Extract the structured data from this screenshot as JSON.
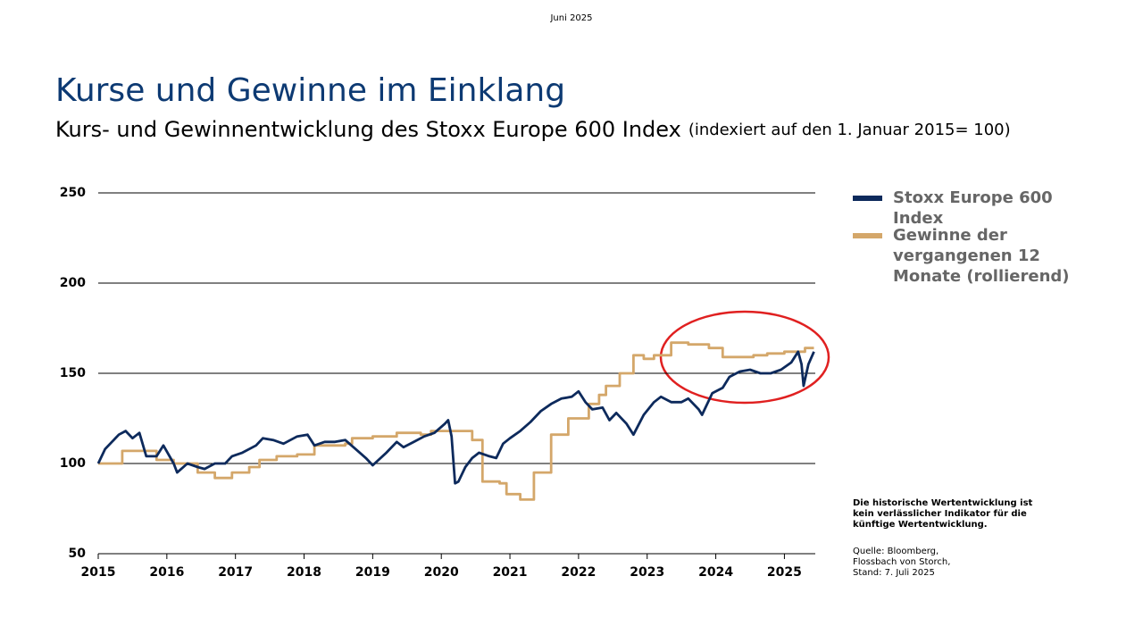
{
  "date": "Juni 2025",
  "chart_data": {
    "type": "line",
    "title": "Kurse und Gewinne im Einklang",
    "subtitle": "Kurs- und Gewinnentwicklung des Stoxx Europe 600 Index",
    "subtitle_note": "(indexiert auf den 1. Januar 2015= 100)",
    "xlim": [
      2015,
      2025.45
    ],
    "xticks": [
      2015,
      2016,
      2017,
      2018,
      2019,
      2020,
      2021,
      2022,
      2023,
      2024,
      2025
    ],
    "ylim": [
      50,
      250
    ],
    "yticks": [
      50,
      100,
      150,
      200,
      250
    ],
    "grid": true,
    "series": [
      {
        "name": "Stoxx Europe 600 Index",
        "color": "#0d2a5c",
        "x": [
          2015.0,
          2015.1,
          2015.3,
          2015.4,
          2015.5,
          2015.6,
          2015.7,
          2015.85,
          2015.95,
          2016.1,
          2016.15,
          2016.3,
          2016.45,
          2016.55,
          2016.7,
          2016.85,
          2016.95,
          2017.1,
          2017.3,
          2017.4,
          2017.55,
          2017.7,
          2017.9,
          2018.05,
          2018.15,
          2018.3,
          2018.45,
          2018.6,
          2018.75,
          2018.9,
          2019.0,
          2019.2,
          2019.35,
          2019.45,
          2019.6,
          2019.75,
          2019.9,
          2020.05,
          2020.1,
          2020.15,
          2020.2,
          2020.25,
          2020.35,
          2020.45,
          2020.55,
          2020.7,
          2020.8,
          2020.9,
          2021.0,
          2021.15,
          2021.3,
          2021.45,
          2021.6,
          2021.75,
          2021.9,
          2022.0,
          2022.1,
          2022.2,
          2022.35,
          2022.45,
          2022.55,
          2022.7,
          2022.8,
          2022.95,
          2023.1,
          2023.2,
          2023.35,
          2023.5,
          2023.6,
          2023.75,
          2023.8,
          2023.95,
          2024.1,
          2024.2,
          2024.35,
          2024.5,
          2024.65,
          2024.8,
          2024.95,
          2025.1,
          2025.2,
          2025.25,
          2025.28,
          2025.35,
          2025.43
        ],
        "values": [
          100,
          108,
          116,
          118,
          114,
          117,
          104,
          104,
          110,
          100,
          95,
          100,
          98,
          97,
          100,
          100,
          104,
          106,
          110,
          114,
          113,
          111,
          115,
          116,
          110,
          112,
          112,
          113,
          108,
          103,
          99,
          106,
          112,
          109,
          112,
          115,
          117,
          122,
          124,
          115,
          89,
          90,
          98,
          103,
          106,
          104,
          103,
          111,
          114,
          118,
          123,
          129,
          133,
          136,
          137,
          140,
          134,
          130,
          131,
          124,
          128,
          122,
          116,
          127,
          134,
          137,
          134,
          134,
          136,
          130,
          127,
          139,
          142,
          148,
          151,
          152,
          150,
          150,
          152,
          156,
          162,
          155,
          143,
          155,
          162
        ]
      },
      {
        "name": "Gewinne der vergangenen 12 Monate (rollierend)",
        "color": "#d4a76a",
        "x": [
          2015,
          2015.35,
          2015.35,
          2015.85,
          2015.85,
          2016.1,
          2016.1,
          2016.45,
          2016.45,
          2016.7,
          2016.7,
          2016.95,
          2016.95,
          2017.2,
          2017.2,
          2017.35,
          2017.35,
          2017.6,
          2017.6,
          2017.9,
          2017.9,
          2018.15,
          2018.15,
          2018.6,
          2018.6,
          2018.7,
          2018.7,
          2019.0,
          2019.0,
          2019.35,
          2019.35,
          2019.7,
          2019.7,
          2019.85,
          2019.85,
          2020.45,
          2020.45,
          2020.6,
          2020.6,
          2020.85,
          2020.85,
          2020.95,
          2020.95,
          2021.15,
          2021.15,
          2021.35,
          2021.35,
          2021.6,
          2021.6,
          2021.85,
          2021.85,
          2022.15,
          2022.15,
          2022.3,
          2022.3,
          2022.4,
          2022.4,
          2022.6,
          2022.6,
          2022.8,
          2022.8,
          2022.95,
          2022.95,
          2023.1,
          2023.1,
          2023.35,
          2023.35,
          2023.6,
          2023.6,
          2023.9,
          2023.9,
          2024.1,
          2024.1,
          2024.55,
          2024.55,
          2024.75,
          2024.75,
          2025.0,
          2025.0,
          2025.3,
          2025.3,
          2025.43
        ],
        "values": [
          100,
          100,
          107,
          107,
          102,
          102,
          100,
          100,
          95,
          95,
          92,
          92,
          95,
          95,
          98,
          98,
          102,
          102,
          104,
          104,
          105,
          105,
          110,
          110,
          111,
          111,
          114,
          114,
          115,
          115,
          117,
          117,
          116,
          116,
          118,
          118,
          113,
          113,
          90,
          90,
          89,
          89,
          83,
          83,
          80,
          80,
          95,
          95,
          116,
          116,
          125,
          125,
          133,
          133,
          138,
          138,
          143,
          143,
          150,
          150,
          160,
          160,
          158,
          158,
          160,
          160,
          167,
          167,
          166,
          166,
          164,
          164,
          159,
          159,
          160,
          160,
          161,
          161,
          162,
          162,
          164,
          164
        ]
      }
    ]
  },
  "notes": {
    "disclaimer": "Die historische Wertentwicklung ist kein verlässlicher Indikator für die künftige Wertentwicklung.",
    "source": "Quelle: Bloomberg, Flossbach von Storch, Stand: 7. Juli 2025"
  }
}
